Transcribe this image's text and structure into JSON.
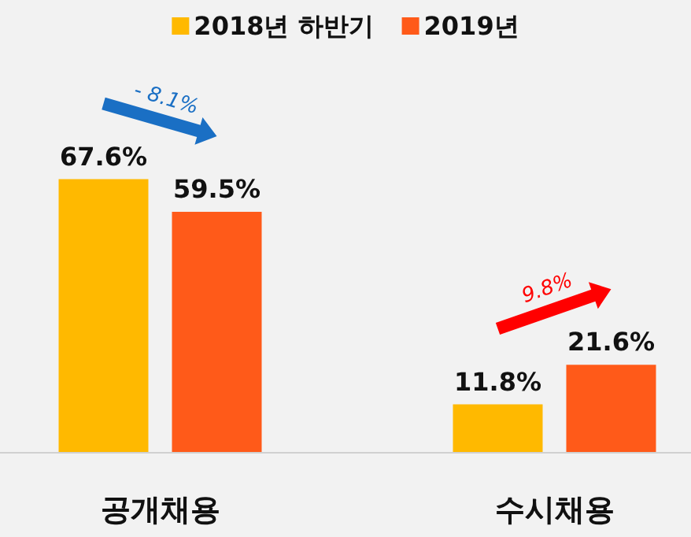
{
  "chart_data": {
    "type": "bar",
    "categories": [
      "공개채용",
      "수시채용"
    ],
    "series": [
      {
        "name": "2018년 하반기",
        "color": "#ffb900",
        "values": [
          67.6,
          11.8
        ],
        "value_labels": [
          "67.6%",
          "11.8%"
        ]
      },
      {
        "name": "2019년",
        "color": "#ff5a19",
        "values": [
          59.5,
          21.6
        ],
        "value_labels": [
          "59.5%",
          "21.6%"
        ]
      }
    ],
    "annotations": [
      "- 8.1%",
      "9.8%"
    ],
    "legend": "top",
    "grid": false
  }
}
